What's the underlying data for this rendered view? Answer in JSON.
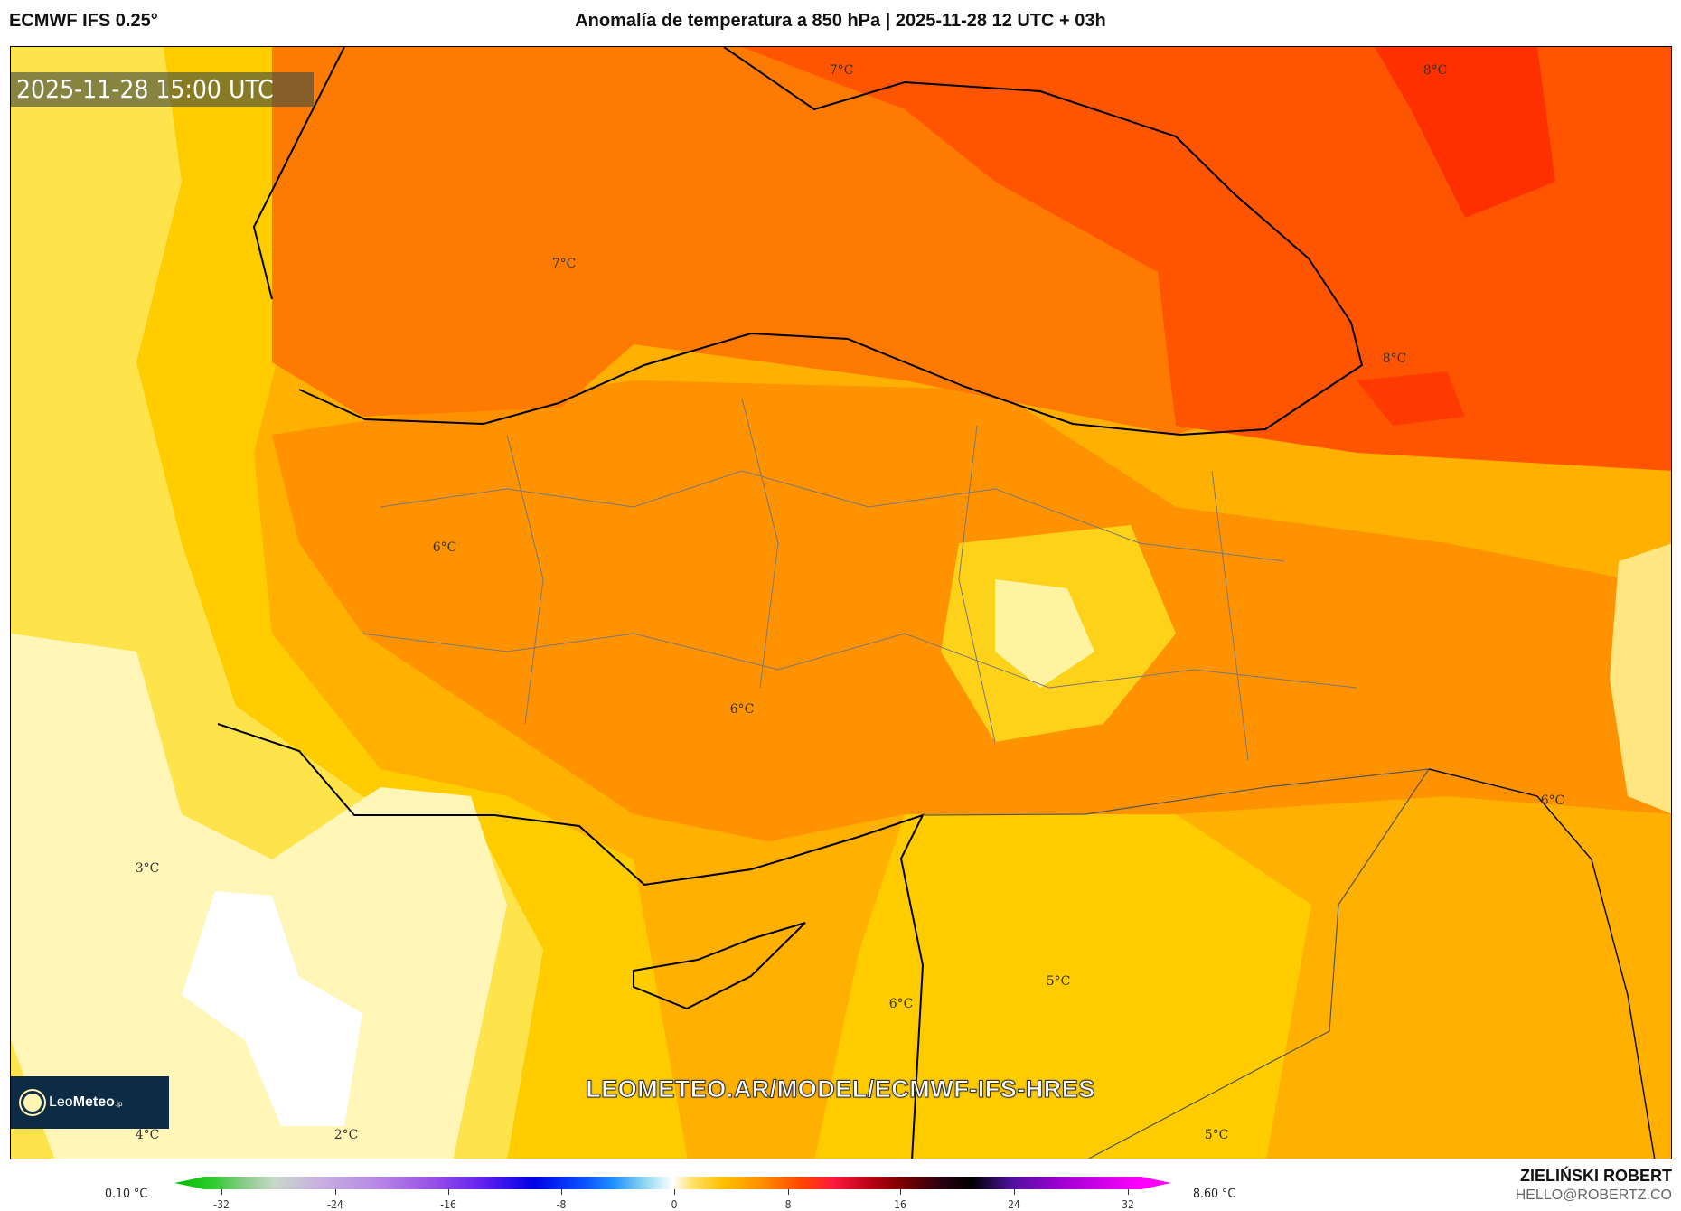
{
  "header": {
    "model": "ECMWF IFS 0.25°",
    "title": "Anomalía de temperatura a 850 hPa | 2025-11-28 12 UTC + 03h"
  },
  "map": {
    "valid_time": "2025-11-28 15:00 UTC",
    "logo": {
      "brand_light": "Leo",
      "brand_bold": "Meteo",
      "suffix": ".jp"
    },
    "watermark": "LEOMETEO.AR/MODEL/ECMWF-IFS-HRES",
    "contour_labels": [
      "7°C",
      "8°C",
      "7°C",
      "8°C",
      "6°C",
      "6°C",
      "6°C",
      "3°C",
      "5°C",
      "6°C",
      "4°C",
      "2°C",
      "5°C"
    ],
    "colors": {
      "pale": "#fff6b8",
      "light_yellow": "#ffe34a",
      "yellow": "#ffcc00",
      "amber": "#ffb000",
      "orange": "#ff9200",
      "dark_orange": "#ff7a00",
      "red_orange": "#ff5500",
      "red": "#ff3000"
    }
  },
  "colorbar": {
    "min_label": "0.10 °C",
    "max_label": "8.60 °C",
    "ticks": [
      "-32",
      "-24",
      "-16",
      "-8",
      "0",
      "8",
      "16",
      "24",
      "32"
    ]
  },
  "footer": {
    "author": "ZIELIŃSKI ROBERT",
    "email": "HELLO@ROBERTZ.CO"
  }
}
